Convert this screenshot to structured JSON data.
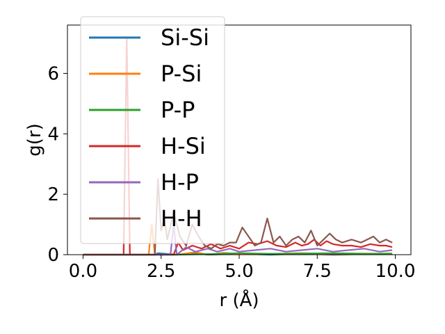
{
  "chart_data": {
    "type": "line",
    "title": "",
    "xlabel": "r (Å)",
    "ylabel": "g(r)",
    "xlim": [
      -0.5,
      10.5
    ],
    "ylim": [
      0,
      7.6
    ],
    "xticks": [
      0.0,
      2.5,
      5.0,
      7.5,
      10.0
    ],
    "xtick_labels": [
      "0.0",
      "2.5",
      "5.0",
      "7.5",
      "10.0"
    ],
    "yticks": [
      0,
      2,
      4,
      6
    ],
    "ytick_labels": [
      "0",
      "2",
      "4",
      "6"
    ],
    "grid": false,
    "legend_position": "top-left",
    "series": [
      {
        "name": "Si-Si",
        "color": "#1f77b4",
        "points": [
          [
            0,
            0
          ],
          [
            1.5,
            0
          ],
          [
            2.0,
            0
          ],
          [
            2.3,
            0
          ],
          [
            2.4,
            0.05
          ],
          [
            3.0,
            0
          ],
          [
            3.6,
            0.05
          ],
          [
            4.0,
            0
          ],
          [
            5.0,
            0.03
          ],
          [
            6.0,
            0
          ],
          [
            7.0,
            0.03
          ],
          [
            8.0,
            0
          ],
          [
            9.0,
            0.02
          ],
          [
            9.9,
            0.02
          ]
        ]
      },
      {
        "name": "P-Si",
        "color": "#ff7f0e",
        "points": [
          [
            0,
            0
          ],
          [
            2.1,
            0
          ],
          [
            2.2,
            1.0
          ],
          [
            2.3,
            0
          ],
          [
            3.0,
            0
          ],
          [
            3.6,
            0.08
          ],
          [
            4.0,
            0
          ],
          [
            4.5,
            0.06
          ],
          [
            5.0,
            0.02
          ],
          [
            6.0,
            0.03
          ],
          [
            7.0,
            0.05
          ],
          [
            8.0,
            0.03
          ],
          [
            9.0,
            0.04
          ],
          [
            9.9,
            0.03
          ]
        ]
      },
      {
        "name": "P-P",
        "color": "#2ca02c",
        "points": [
          [
            0,
            0
          ],
          [
            3.0,
            0
          ],
          [
            4.0,
            0.02
          ],
          [
            5.0,
            0.05
          ],
          [
            6.0,
            0.03
          ],
          [
            7.0,
            0.04
          ],
          [
            8.0,
            0.05
          ],
          [
            9.0,
            0.03
          ],
          [
            9.9,
            0.04
          ]
        ]
      },
      {
        "name": "H-Si",
        "color": "#d62728",
        "points": [
          [
            0,
            0
          ],
          [
            1.3,
            0
          ],
          [
            1.4,
            7.2
          ],
          [
            1.5,
            0
          ],
          [
            2.9,
            0
          ],
          [
            3.05,
            0.4
          ],
          [
            3.2,
            0.15
          ],
          [
            3.5,
            0.3
          ],
          [
            3.8,
            0.2
          ],
          [
            4.1,
            0.35
          ],
          [
            4.4,
            0.2
          ],
          [
            4.7,
            0.3
          ],
          [
            5.0,
            0.2
          ],
          [
            5.3,
            0.4
          ],
          [
            5.6,
            0.35
          ],
          [
            5.9,
            0.45
          ],
          [
            6.2,
            0.3
          ],
          [
            6.5,
            0.25
          ],
          [
            6.8,
            0.4
          ],
          [
            7.0,
            0.3
          ],
          [
            7.2,
            0.35
          ],
          [
            7.4,
            0.5
          ],
          [
            7.6,
            0.3
          ],
          [
            7.8,
            0.45
          ],
          [
            8.0,
            0.35
          ],
          [
            8.3,
            0.3
          ],
          [
            8.6,
            0.3
          ],
          [
            8.9,
            0.25
          ],
          [
            9.2,
            0.35
          ],
          [
            9.5,
            0.3
          ],
          [
            9.7,
            0.3
          ],
          [
            9.9,
            0.25
          ]
        ]
      },
      {
        "name": "H-P",
        "color": "#9467bd",
        "points": [
          [
            0,
            0
          ],
          [
            2.8,
            0
          ],
          [
            2.9,
            1.0
          ],
          [
            3.0,
            0
          ],
          [
            3.3,
            0.25
          ],
          [
            3.6,
            0.1
          ],
          [
            4.0,
            0.2
          ],
          [
            4.3,
            0.1
          ],
          [
            4.7,
            0.2
          ],
          [
            5.0,
            0.1
          ],
          [
            5.5,
            0.15
          ],
          [
            6.0,
            0.2
          ],
          [
            6.5,
            0.1
          ],
          [
            7.0,
            0.15
          ],
          [
            7.5,
            0.2
          ],
          [
            8.0,
            0.1
          ],
          [
            8.5,
            0.15
          ],
          [
            9.0,
            0.2
          ],
          [
            9.5,
            0.1
          ],
          [
            9.9,
            0.15
          ]
        ]
      },
      {
        "name": "H-H",
        "color": "#8c564b",
        "points": [
          [
            0,
            0
          ],
          [
            2.3,
            0
          ],
          [
            2.4,
            2.5
          ],
          [
            2.5,
            0.8
          ],
          [
            2.6,
            1.2
          ],
          [
            2.7,
            0.5
          ],
          [
            2.9,
            1.4
          ],
          [
            3.1,
            0.6
          ],
          [
            3.3,
            0.3
          ],
          [
            3.5,
            1.0
          ],
          [
            3.7,
            0.6
          ],
          [
            3.9,
            0.3
          ],
          [
            4.1,
            0.2
          ],
          [
            4.3,
            0.35
          ],
          [
            4.5,
            0.3
          ],
          [
            4.7,
            0.4
          ],
          [
            4.9,
            0.4
          ],
          [
            5.1,
            0.9
          ],
          [
            5.3,
            0.6
          ],
          [
            5.5,
            0.3
          ],
          [
            5.7,
            0.4
          ],
          [
            5.9,
            1.2
          ],
          [
            6.1,
            0.4
          ],
          [
            6.3,
            0.6
          ],
          [
            6.5,
            0.3
          ],
          [
            6.7,
            0.5
          ],
          [
            6.9,
            0.6
          ],
          [
            7.1,
            0.4
          ],
          [
            7.3,
            0.8
          ],
          [
            7.5,
            0.3
          ],
          [
            7.7,
            0.5
          ],
          [
            7.9,
            0.7
          ],
          [
            8.1,
            0.5
          ],
          [
            8.3,
            0.4
          ],
          [
            8.6,
            0.5
          ],
          [
            8.9,
            0.4
          ],
          [
            9.1,
            0.5
          ],
          [
            9.3,
            0.6
          ],
          [
            9.5,
            0.4
          ],
          [
            9.7,
            0.5
          ],
          [
            9.9,
            0.4
          ]
        ]
      }
    ]
  }
}
